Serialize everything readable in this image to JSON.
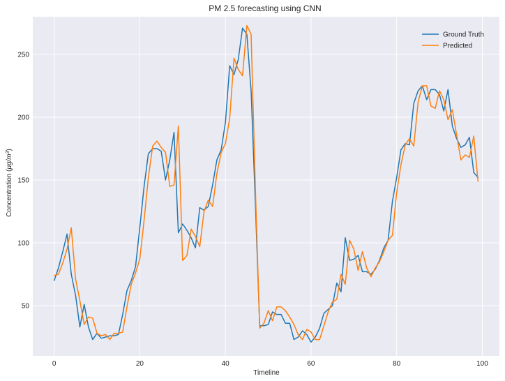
{
  "chart_data": {
    "type": "line",
    "title": "PM 2.5 forecasting using CNN",
    "xlabel": "Timeline",
    "ylabel_main": "Concentration (",
    "ylabel_unit": "μg/m",
    "ylabel_exp": "3",
    "ylabel_close": ")",
    "xlim": [
      -5,
      104
    ],
    "ylim": [
      10,
      280
    ],
    "xticks": [
      0,
      20,
      40,
      60,
      80,
      100
    ],
    "xtick_labels": [
      "0",
      "20",
      "40",
      "60",
      "80",
      "100"
    ],
    "yticks": [
      50,
      100,
      150,
      200,
      250
    ],
    "ytick_labels": [
      "50",
      "100",
      "150",
      "200",
      "250"
    ],
    "grid": true,
    "legend_position": "top-right",
    "x": [
      0,
      1,
      2,
      3,
      4,
      5,
      6,
      7,
      8,
      9,
      10,
      11,
      12,
      13,
      14,
      15,
      16,
      17,
      18,
      19,
      20,
      21,
      22,
      23,
      24,
      25,
      26,
      27,
      28,
      29,
      30,
      31,
      32,
      33,
      34,
      35,
      36,
      37,
      38,
      39,
      40,
      41,
      42,
      43,
      44,
      45,
      46,
      47,
      48,
      49,
      50,
      51,
      52,
      53,
      54,
      55,
      56,
      57,
      58,
      59,
      60,
      61,
      62,
      63,
      64,
      65,
      66,
      67,
      68,
      69,
      70,
      71,
      72,
      73,
      74,
      75,
      76,
      77,
      78,
      79,
      80,
      81,
      82,
      83,
      84,
      85,
      86,
      87,
      88,
      89,
      90,
      91,
      92,
      93,
      94,
      95,
      96,
      97,
      98,
      99
    ],
    "series": [
      {
        "name": "Ground Truth",
        "color": "#1f77b4",
        "values": [
          70,
          80,
          93,
          107,
          75,
          58,
          33,
          51,
          33,
          23,
          28,
          24,
          25,
          26,
          26,
          27,
          43,
          62,
          70,
          81,
          112,
          145,
          171,
          175,
          175,
          173,
          150,
          166,
          188,
          108,
          115,
          110,
          104,
          96,
          128,
          126,
          129,
          146,
          166,
          174,
          196,
          241,
          234,
          246,
          271,
          266,
          221,
          130,
          34,
          34,
          35,
          45,
          43,
          43,
          36,
          36,
          23,
          25,
          30,
          27,
          21,
          25,
          32,
          44,
          47,
          50,
          68,
          61,
          104,
          86,
          87,
          90,
          77,
          77,
          75,
          79,
          86,
          96,
          102,
          133,
          152,
          174,
          179,
          178,
          211,
          221,
          225,
          214,
          222,
          222,
          218,
          205,
          222,
          193,
          183,
          176,
          178,
          184,
          156,
          152
        ]
      },
      {
        "name": "Predicted",
        "color": "#ff7f0e",
        "values": [
          74,
          75,
          84,
          95,
          112,
          71,
          54,
          35,
          41,
          40,
          28,
          26,
          27,
          23,
          28,
          28,
          29,
          49,
          67,
          76,
          87,
          118,
          152,
          177,
          181,
          176,
          172,
          145,
          146,
          193,
          86,
          90,
          111,
          105,
          97,
          125,
          134,
          129,
          155,
          172,
          179,
          199,
          247,
          238,
          233,
          273,
          266,
          142,
          32,
          36,
          46,
          38,
          49,
          49,
          46,
          41,
          35,
          27,
          23,
          31,
          29,
          23,
          23,
          34,
          45,
          53,
          55,
          75,
          67,
          102,
          95,
          78,
          93,
          80,
          73,
          80,
          85,
          93,
          102,
          106,
          140,
          162,
          178,
          183,
          177,
          212,
          225,
          225,
          209,
          207,
          221,
          214,
          198,
          206,
          186,
          166,
          170,
          168,
          185,
          149
        ]
      }
    ]
  }
}
